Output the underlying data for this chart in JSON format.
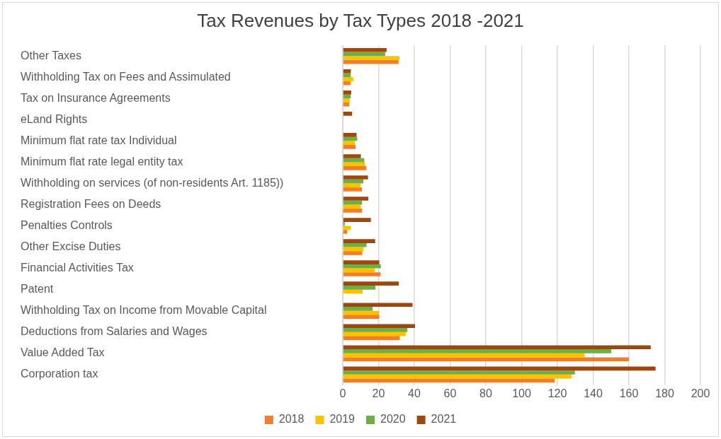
{
  "chart_data": {
    "type": "bar",
    "orientation": "horizontal",
    "title": "Tax Revenues by Tax Types 2018 -2021",
    "categories": [
      "Other Taxes",
      "Withholding Tax on Fees and Assimulated",
      "Tax on Insurance Agreements",
      "eLand Rights",
      "Minimum flat rate tax Individual",
      "Minimum flat rate legal entity tax",
      "Withholding on services (of non-residents Art. 1185))",
      "Registration Fees on Deeds",
      "Penalties Controls",
      "Other Excise Duties",
      "Financial Activities Tax",
      "Patent",
      "Withholding Tax on Income from Movable Capital",
      "Deductions from Salaries and Wages",
      "Value Added Tax",
      "Corporation tax"
    ],
    "series": [
      {
        "name": "2018",
        "color": "#ed7d31",
        "values": [
          31.2,
          4.3,
          3.7,
          null,
          7.1,
          13.2,
          10.7,
          10.8,
          2.5,
          10.9,
          21.1,
          null,
          20.3,
          31.9,
          160,
          118.5
        ]
      },
      {
        "name": "2019",
        "color": "#ffc000",
        "values": [
          31.7,
          5.9,
          3.9,
          null,
          6.8,
          12.3,
          10,
          10.1,
          4.5,
          11.6,
          18,
          11.1,
          20.3,
          35.2,
          135.2,
          127.9
        ]
      },
      {
        "name": "2020",
        "color": "#70ad47",
        "values": [
          23.7,
          4.5,
          4.4,
          null,
          8.1,
          12,
          11.5,
          10.7,
          1.1,
          13.3,
          21.3,
          18.3,
          16.7,
          36.1,
          150.1,
          129.8
        ]
      },
      {
        "name": "2021",
        "color": "#9e480e",
        "values": [
          24.5,
          4.5,
          4.7,
          5.2,
          7.7,
          10.1,
          14.1,
          14.3,
          15.7,
          18.1,
          20.4,
          31.3,
          39,
          40.4,
          172.2,
          174.9
        ]
      }
    ],
    "xlim": [
      0,
      200
    ],
    "xticks": [
      0,
      20,
      40,
      60,
      80,
      100,
      120,
      140,
      160,
      180,
      200
    ],
    "grid": "x",
    "legend": "bottom"
  }
}
